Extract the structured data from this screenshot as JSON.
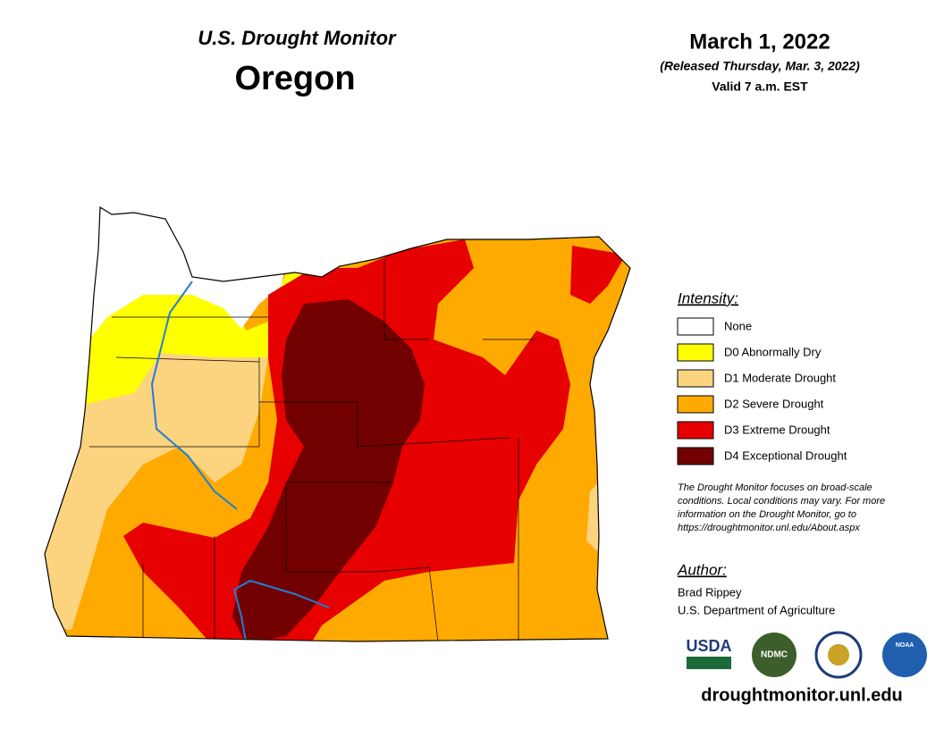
{
  "header": {
    "title": "U.S. Drought Monitor",
    "state": "Oregon",
    "date": "March 1, 2022",
    "released": "(Released Thursday, Mar. 3, 2022)",
    "valid": "Valid 7 a.m. EST"
  },
  "legend": {
    "title": "Intensity:",
    "items": [
      {
        "label": "None",
        "color": "#ffffff"
      },
      {
        "label": "D0 Abnormally Dry",
        "color": "#ffff00"
      },
      {
        "label": "D1 Moderate Drought",
        "color": "#fcd37f"
      },
      {
        "label": "D2 Severe Drought",
        "color": "#ffaa00"
      },
      {
        "label": "D3 Extreme Drought",
        "color": "#e60000"
      },
      {
        "label": "D4 Exceptional Drought",
        "color": "#730000"
      }
    ]
  },
  "note": [
    "The Drought Monitor focuses on broad-scale",
    "conditions. Local conditions may vary. For more",
    "information on the Drought Monitor, go to",
    "https://droughtmonitor.unl.edu/About.aspx"
  ],
  "author": {
    "title": "Author:",
    "name": "Brad Rippey",
    "org": "U.S. Department of Agriculture"
  },
  "logos": [
    "USDA",
    "NDMC",
    "NOAA"
  ],
  "url": "droughtmonitor.unl.edu"
}
